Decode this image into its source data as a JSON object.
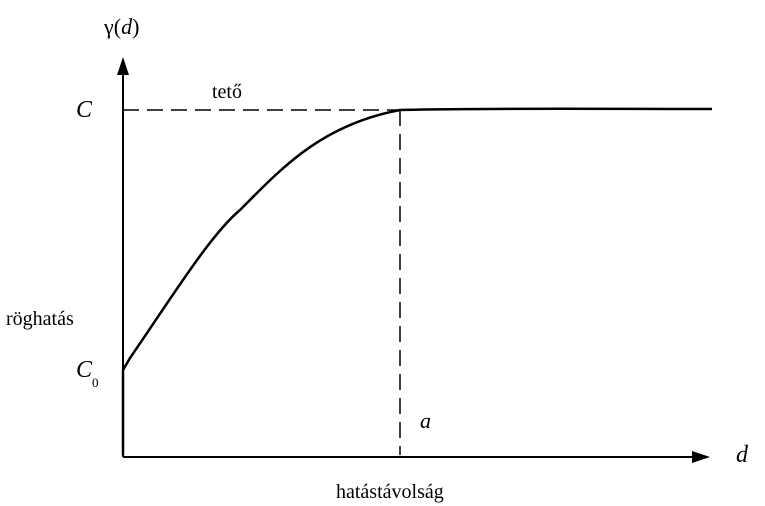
{
  "labels": {
    "y_axis_symbol": "γ(",
    "y_axis_var": "d",
    "y_axis_close": ")",
    "x_axis_var": "d",
    "sill_symbol": "C",
    "nugget_symbol": "C",
    "nugget_subscript": "0",
    "sill_label": "tető",
    "nugget_label": "röghatás",
    "range_symbol": "a",
    "range_label": "hatástávolság"
  }
}
